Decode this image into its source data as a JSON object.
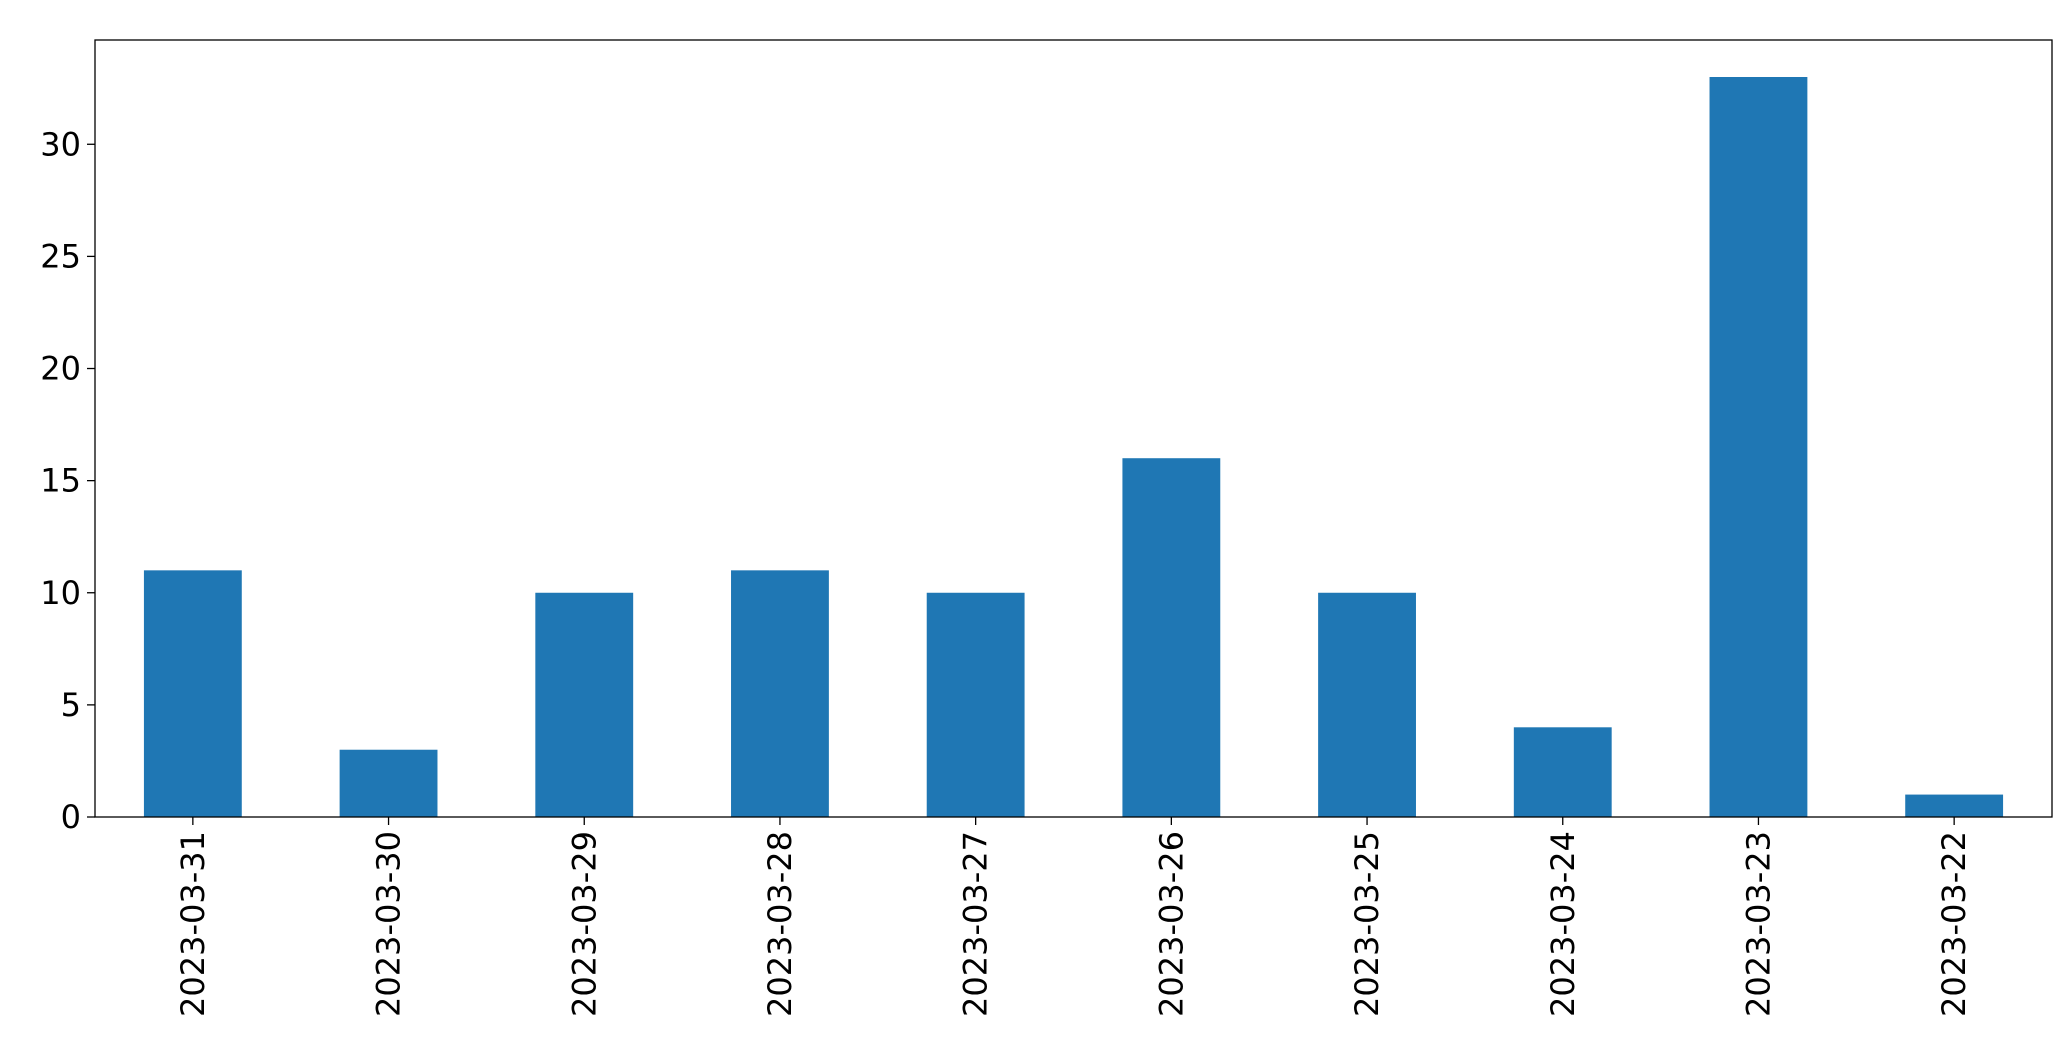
{
  "chart_data": {
    "type": "bar",
    "categories": [
      "2023-03-31",
      "2023-03-30",
      "2023-03-29",
      "2023-03-28",
      "2023-03-27",
      "2023-03-26",
      "2023-03-25",
      "2023-03-24",
      "2023-03-23",
      "2023-03-22"
    ],
    "values": [
      11,
      3,
      10,
      11,
      10,
      16,
      10,
      4,
      33,
      1
    ],
    "color": "#1f77b4",
    "ylim": [
      0,
      34.65
    ],
    "yticks": [
      0,
      5,
      10,
      15,
      20,
      25,
      30
    ],
    "grid": false
  }
}
